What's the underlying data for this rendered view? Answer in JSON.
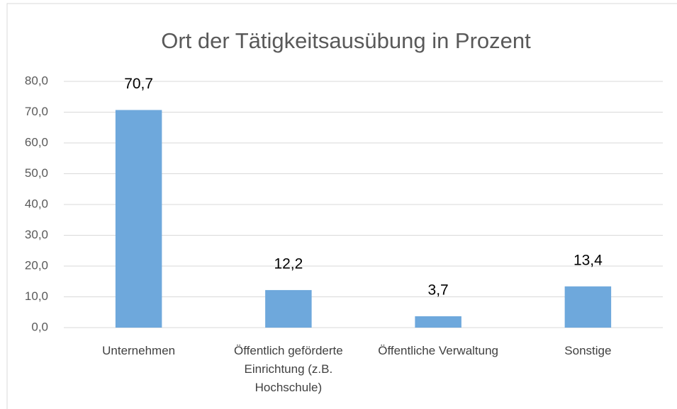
{
  "chart_data": {
    "type": "bar",
    "title": "Ort der Tätigkeitsausübung in Prozent",
    "categories": [
      "Unternehmen",
      "Öffentlich geförderte Einrichtung (z.B. Hochschule)",
      "Öffentliche Verwaltung",
      "Sonstige"
    ],
    "values": [
      70.7,
      12.2,
      3.7,
      13.4
    ],
    "value_labels": [
      "70,7",
      "12,2",
      "3,7",
      "13,4"
    ],
    "color": "#6ea8dc",
    "ylim": [
      0,
      80
    ],
    "yticks": [
      {
        "value": 0,
        "label": "0,0"
      },
      {
        "value": 10,
        "label": "10,0"
      },
      {
        "value": 20,
        "label": "20,0"
      },
      {
        "value": 30,
        "label": "30,0"
      },
      {
        "value": 40,
        "label": "40,0"
      },
      {
        "value": 50,
        "label": "50,0"
      },
      {
        "value": 60,
        "label": "60,0"
      },
      {
        "value": 70,
        "label": "70,0"
      },
      {
        "value": 80,
        "label": "80,0"
      }
    ],
    "grid": true
  }
}
